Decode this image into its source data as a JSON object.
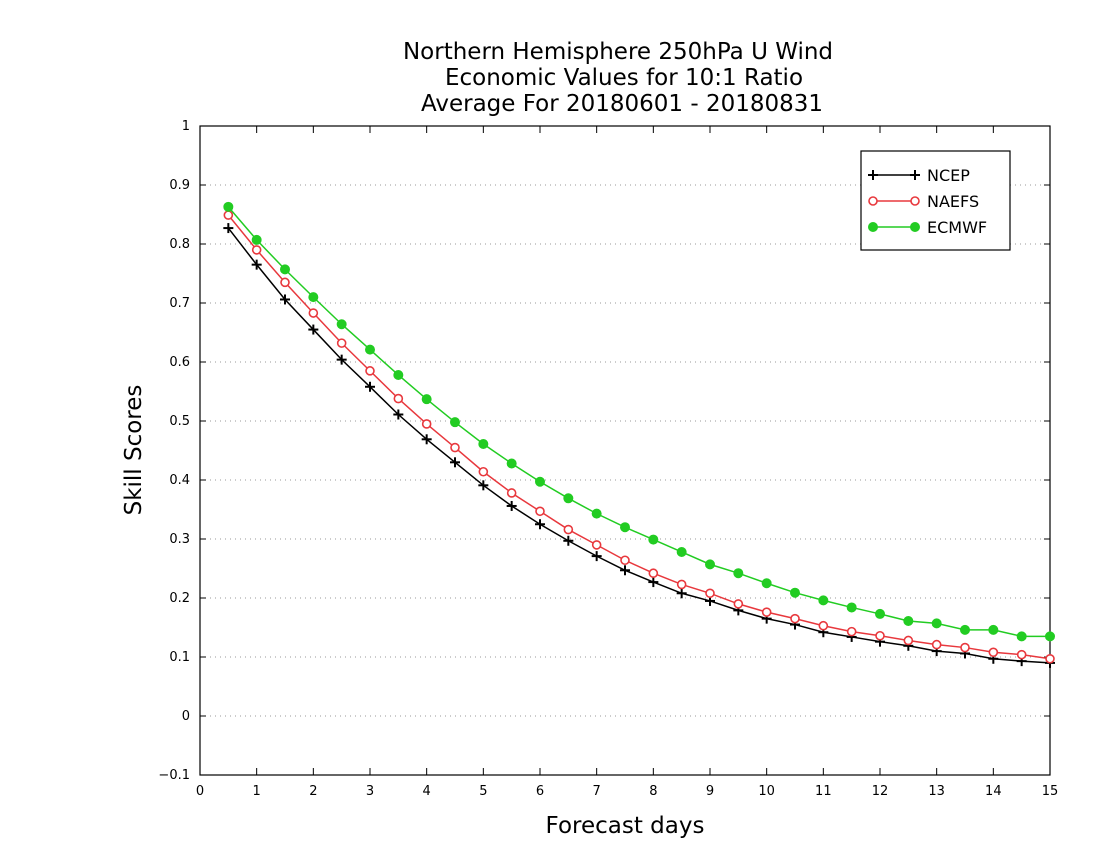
{
  "chart_data": {
    "type": "line",
    "title": [
      "Northern Hemisphere 250hPa U Wind",
      "Economic Values for 10:1 Ratio",
      "Average For 20180601 - 20180831"
    ],
    "xlabel": "Forecast days",
    "ylabel": "Skill Scores",
    "xlim": [
      0,
      15
    ],
    "ylim": [
      -0.1,
      1
    ],
    "xticks": [
      "0",
      "1",
      "2",
      "3",
      "4",
      "5",
      "6",
      "7",
      "8",
      "9",
      "10",
      "11",
      "12",
      "13",
      "14",
      "15"
    ],
    "yticks": [
      "−0.1",
      "0",
      "0.1",
      "0.2",
      "0.3",
      "0.4",
      "0.5",
      "0.6",
      "0.7",
      "0.8",
      "0.9",
      "1"
    ],
    "grid": "horizontal dotted",
    "legend_position": "top-right",
    "x": [
      0.5,
      1,
      1.5,
      2,
      2.5,
      3,
      3.5,
      4,
      4.5,
      5,
      5.5,
      6,
      6.5,
      7,
      7.5,
      8,
      8.5,
      9,
      9.5,
      10,
      10.5,
      11,
      11.5,
      12,
      12.5,
      13,
      13.5,
      14,
      14.5,
      15
    ],
    "series": [
      {
        "name": "NCEP",
        "color": "#000000",
        "marker": "plus",
        "values": [
          0.827,
          0.765,
          0.706,
          0.655,
          0.604,
          0.558,
          0.511,
          0.469,
          0.43,
          0.391,
          0.356,
          0.325,
          0.297,
          0.271,
          0.247,
          0.227,
          0.208,
          0.195,
          0.179,
          0.165,
          0.155,
          0.142,
          0.134,
          0.126,
          0.119,
          0.11,
          0.106,
          0.097,
          0.093,
          0.09
        ]
      },
      {
        "name": "NAEFS",
        "color": "#e8383d",
        "marker": "open-circle",
        "values": [
          0.849,
          0.79,
          0.735,
          0.683,
          0.632,
          0.585,
          0.538,
          0.495,
          0.455,
          0.414,
          0.378,
          0.347,
          0.316,
          0.29,
          0.264,
          0.242,
          0.223,
          0.208,
          0.19,
          0.176,
          0.165,
          0.153,
          0.143,
          0.136,
          0.128,
          0.121,
          0.116,
          0.108,
          0.104,
          0.097
        ]
      },
      {
        "name": "ECMWF",
        "color": "#22cc22",
        "marker": "filled-circle",
        "values": [
          0.863,
          0.807,
          0.757,
          0.71,
          0.664,
          0.621,
          0.578,
          0.537,
          0.498,
          0.461,
          0.428,
          0.397,
          0.369,
          0.343,
          0.32,
          0.299,
          0.278,
          0.257,
          0.242,
          0.225,
          0.209,
          0.196,
          0.184,
          0.173,
          0.161,
          0.157,
          0.146,
          0.146,
          0.135,
          0.135
        ]
      }
    ]
  }
}
